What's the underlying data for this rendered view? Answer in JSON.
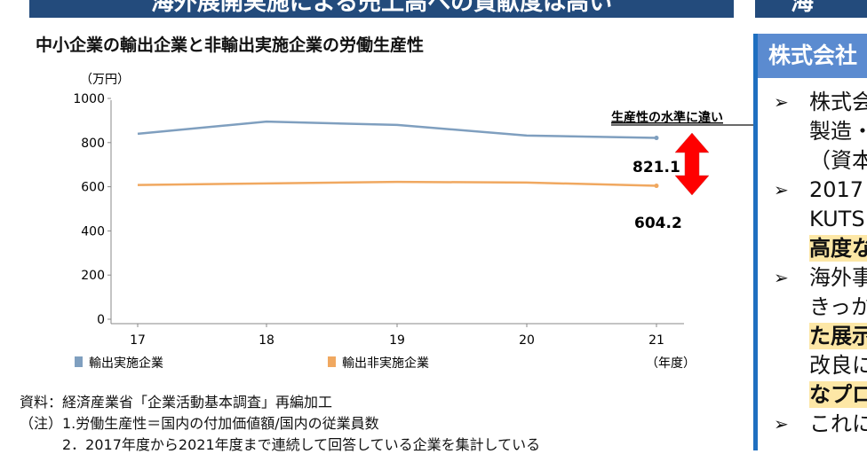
{
  "banner": {
    "left_title": "海外展開実施による売上高への貢献度は高い",
    "right_title": "海"
  },
  "chart_data": {
    "type": "line",
    "title": "中小企業の輸出企業と非輸出実施企業の労働生産性",
    "ylabel": "（万円）",
    "xlabel": "（年度）",
    "categories": [
      "17",
      "18",
      "19",
      "20",
      "21"
    ],
    "yticks": [
      "0",
      "200",
      "400",
      "600",
      "800",
      "1000"
    ],
    "ylim": [
      0,
      1000
    ],
    "grid": false,
    "series": [
      {
        "name": "輸出実施企業",
        "color": "#7f9fbf",
        "values": [
          840,
          895,
          880,
          832,
          821.1
        ]
      },
      {
        "name": "輸出非実施企業",
        "color": "#f0a860",
        "values": [
          608,
          615,
          622,
          619,
          604.2
        ]
      }
    ],
    "legend_position": "bottom",
    "annotations": {
      "headline": "生産性の水準に違い",
      "label_export": "821.1",
      "label_nonexport": "604.2",
      "arrow_color": "#ff0000"
    }
  },
  "footnotes": {
    "source": "資料：経済産業省「企業活動基本調査」再編加工",
    "note1": "（注）1.労働生産性＝国内の付加価値額/国内の従業員数",
    "note2": "　　　2．2017年度から2021年度まで連続して回答している企業を集計している"
  },
  "panel": {
    "title": "株式会社",
    "lines": [
      {
        "text": "株式会",
        "bullet": true,
        "highlight": false
      },
      {
        "text": "製造・",
        "bullet": false,
        "highlight": false
      },
      {
        "text": "（資本",
        "bullet": false,
        "highlight": false
      },
      {
        "text": "2017",
        "bullet": true,
        "highlight": false
      },
      {
        "text": "KUTS",
        "bullet": false,
        "highlight": false
      },
      {
        "text": "高度な",
        "bullet": false,
        "highlight": true
      },
      {
        "text": "海外事",
        "bullet": true,
        "highlight": false
      },
      {
        "text": "きっか",
        "bullet": false,
        "highlight": false
      },
      {
        "text": "た展示",
        "bullet": false,
        "highlight": true
      },
      {
        "text": "改良に",
        "bullet": false,
        "highlight": false
      },
      {
        "text": "なプロ",
        "bullet": false,
        "highlight": true
      },
      {
        "text": "これに",
        "bullet": true,
        "highlight": false
      }
    ],
    "bullet_glyph": "➢"
  }
}
